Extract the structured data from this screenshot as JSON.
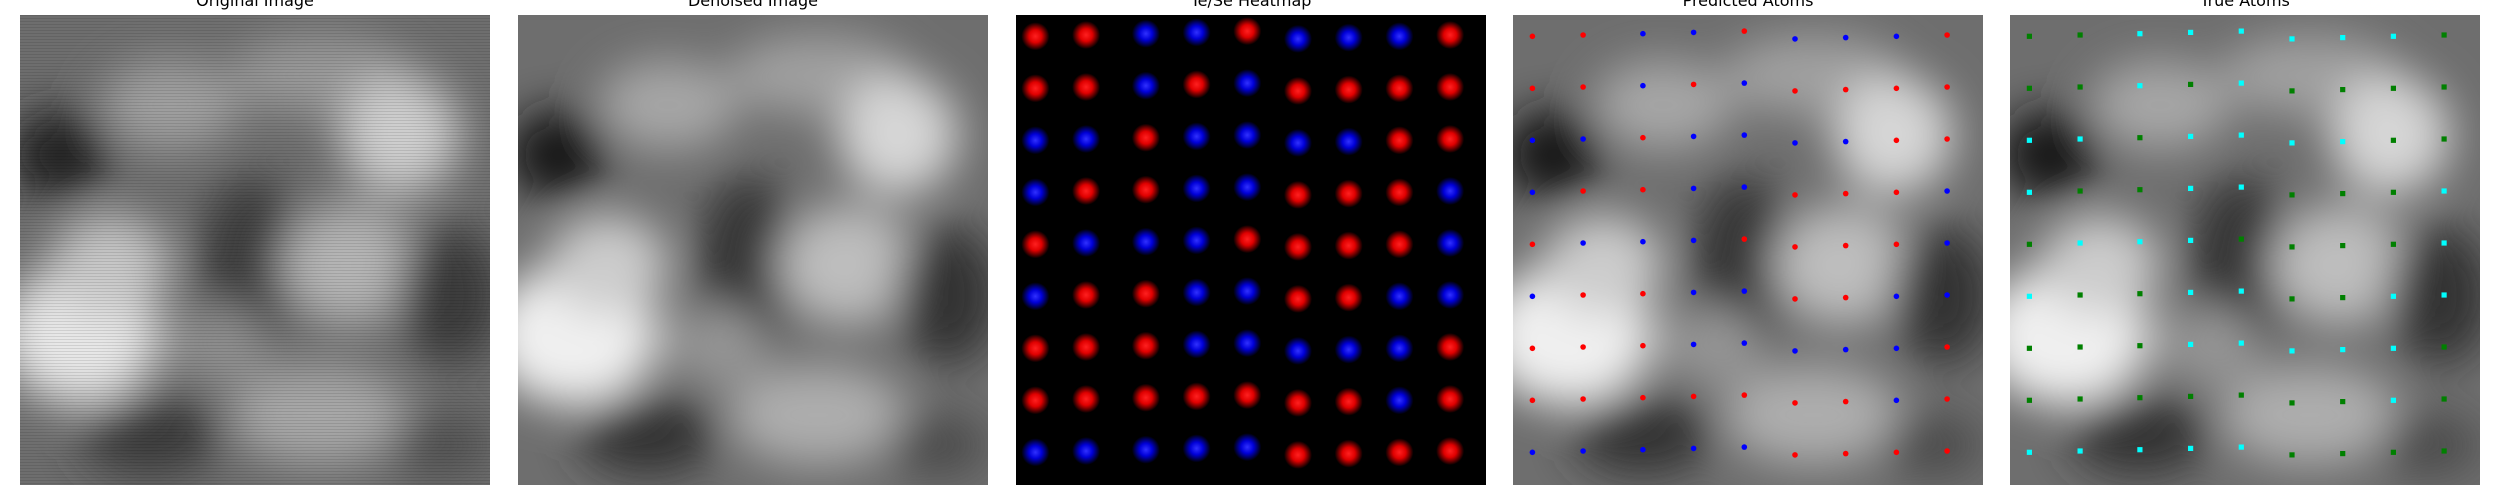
{
  "figure": {
    "panels": [
      {
        "id": "original",
        "title": "Original Image"
      },
      {
        "id": "denoised",
        "title": "Denoised Image"
      },
      {
        "id": "heatmap",
        "title": "Te/Se Heatmap"
      },
      {
        "id": "predicted",
        "title": "Predicted Atoms"
      },
      {
        "id": "true",
        "title": "True Atoms"
      }
    ]
  },
  "colors": {
    "te": "#ff0000",
    "se": "#0000ff",
    "true_a": "#00ffff",
    "true_b": "#008000",
    "background": "#000000"
  },
  "lattice": {
    "columns": 9,
    "rows": 9,
    "heatmap_species": [
      "TTSSTSSST",
      "TTSTSTTTT",
      "SSTSSSSTT",
      "STTSSTTTS",
      "TSSSTTTTS",
      "STTSSTTSS",
      "TTTSSSSST",
      "TTTTTTTST",
      "SSSSSTTTT"
    ],
    "predicted_species": [
      "TTSSTSSST",
      "TTSTSTTTT",
      "SSTSSSSTT",
      "STTSSTTTS",
      "TSSSTTTTS",
      "STTSSTTSS",
      "TTTSSSSST",
      "TTTTTTTST",
      "SSSSSTTTT"
    ],
    "true_species": [
      "GGCCCCCCG",
      "GGCGCGGGG",
      "CCGCCCCGG",
      "CGGCCGGGC",
      "GCCCGGGGC",
      "CGGCCGGCC",
      "GGGCCCCCG",
      "GGGGGGGCG",
      "CCCCCGGGG"
    ]
  }
}
